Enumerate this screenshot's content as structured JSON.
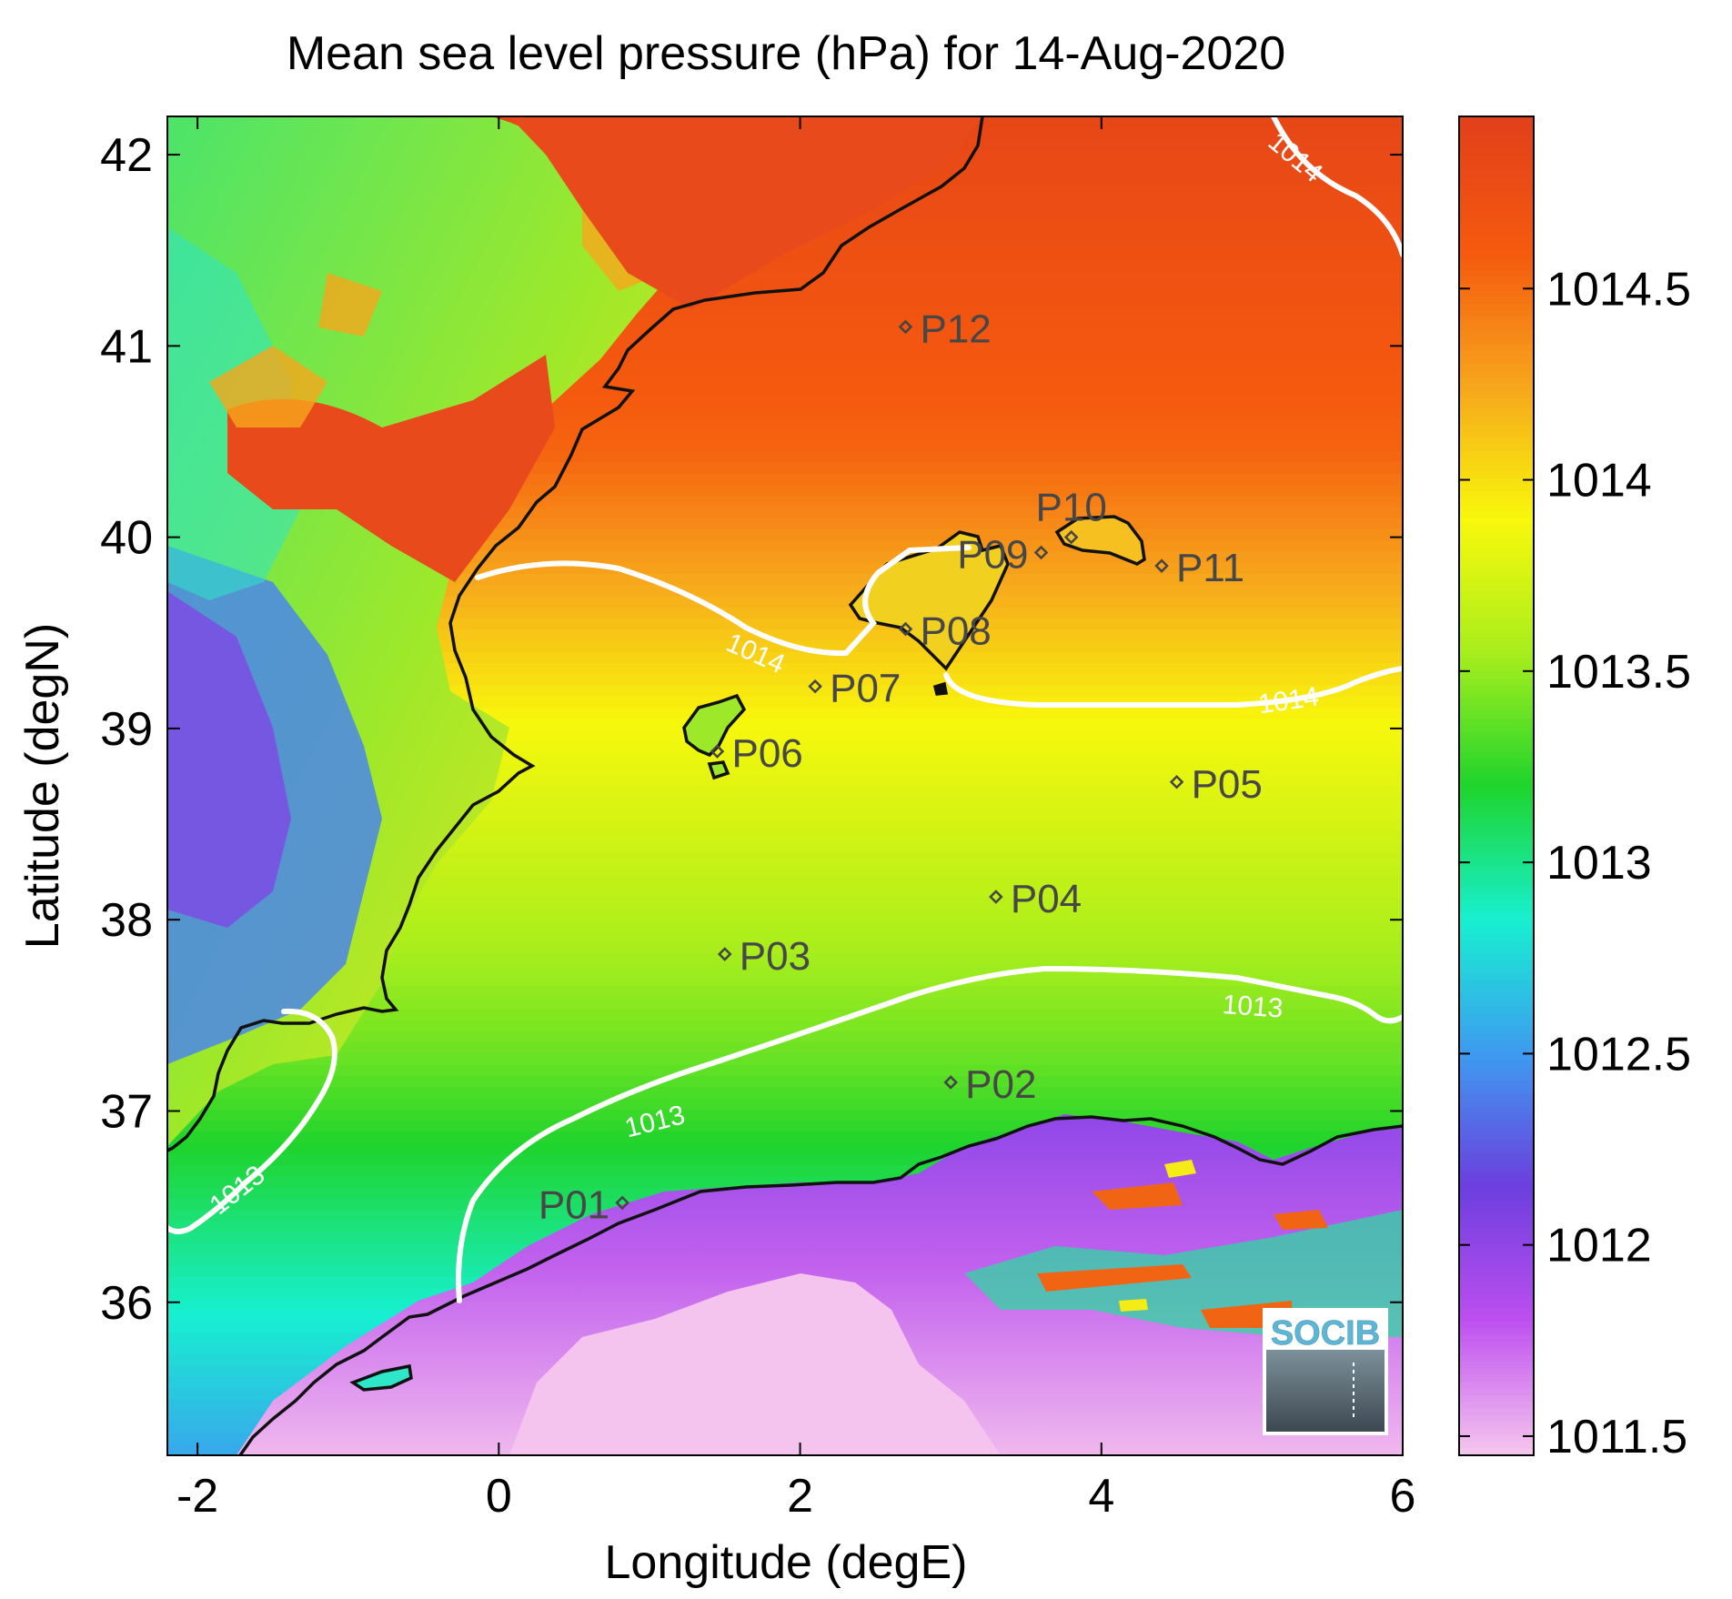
{
  "chart_data": {
    "type": "heatmap",
    "title": "Mean sea level pressure (hPa) for 14-Aug-2020",
    "xlabel": "Longitude (degE)",
    "ylabel": "Latitude (degN)",
    "xlim": [
      -2.2,
      6
    ],
    "ylim": [
      35.2,
      42.2
    ],
    "xticks": [
      -2,
      0,
      2,
      4,
      6
    ],
    "yticks": [
      36,
      37,
      38,
      39,
      40,
      41,
      42
    ],
    "colorbar": {
      "label_ticks": [
        1011.5,
        1012,
        1012.5,
        1013,
        1013.5,
        1014,
        1014.5
      ],
      "range": [
        1011.45,
        1014.95
      ],
      "colors": [
        "#f5c4ee",
        "#bd4ff0",
        "#6c3ede",
        "#3d9cf0",
        "#17f0d0",
        "#1fd42c",
        "#a8ee1c",
        "#f8f80c",
        "#f7a61c",
        "#f55a0e",
        "#e2401a"
      ]
    },
    "contour_labels": [
      {
        "text": "1014",
        "lon": 5.25,
        "lat": 41.95,
        "rotate": 40
      },
      {
        "text": "1014",
        "lon": 1.68,
        "lat": 39.35,
        "rotate": 24
      },
      {
        "text": "1014",
        "lon": 5.25,
        "lat": 39.1,
        "rotate": -8
      },
      {
        "text": "1013",
        "lon": 5.0,
        "lat": 37.5,
        "rotate": 4
      },
      {
        "text": "1013",
        "lon": 1.05,
        "lat": 36.9,
        "rotate": -14
      },
      {
        "text": "1013",
        "lon": -1.7,
        "lat": 36.55,
        "rotate": -38
      }
    ],
    "stations": [
      {
        "name": "P01",
        "lon": 0.82,
        "lat": 36.52,
        "label_side": "left"
      },
      {
        "name": "P02",
        "lon": 3.0,
        "lat": 37.15,
        "label_side": "right"
      },
      {
        "name": "P03",
        "lon": 1.5,
        "lat": 37.82,
        "label_side": "right"
      },
      {
        "name": "P04",
        "lon": 3.3,
        "lat": 38.12,
        "label_side": "right"
      },
      {
        "name": "P05",
        "lon": 4.5,
        "lat": 38.72,
        "label_side": "right"
      },
      {
        "name": "P06",
        "lon": 1.45,
        "lat": 38.88,
        "label_side": "right"
      },
      {
        "name": "P07",
        "lon": 2.1,
        "lat": 39.22,
        "label_side": "right"
      },
      {
        "name": "P08",
        "lon": 2.7,
        "lat": 39.52,
        "label_side": "right"
      },
      {
        "name": "P09",
        "lon": 3.6,
        "lat": 39.92,
        "label_side": "left"
      },
      {
        "name": "P10",
        "lon": 3.8,
        "lat": 40.0,
        "label_side": "above"
      },
      {
        "name": "P11",
        "lon": 4.4,
        "lat": 39.85,
        "label_side": "right"
      },
      {
        "name": "P12",
        "lon": 2.7,
        "lat": 41.1,
        "label_side": "right"
      }
    ],
    "legend_placement": "right colorbar",
    "grid": false
  },
  "logo": {
    "text": "SOCIB"
  }
}
